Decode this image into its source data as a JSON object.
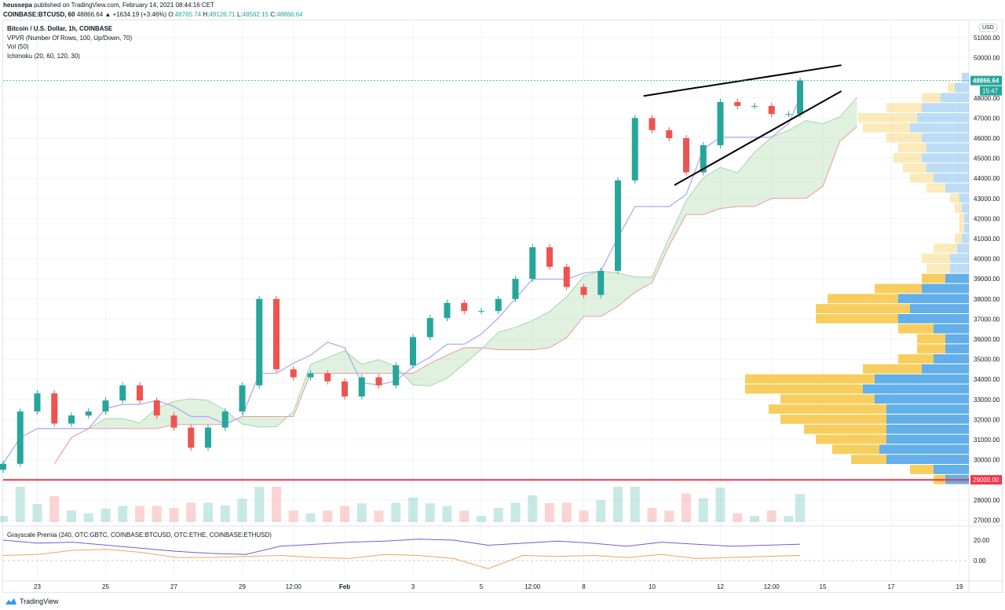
{
  "header": {
    "author": "heussepa",
    "published": "published on TradingView.com, February 14, 2021 08:44:16 CET",
    "symbol": "COINBASE:BTCUSD, 60",
    "last": "48866.64",
    "change": "▲ +1634.19 (+3.46%)",
    "o_label": "O:",
    "o": "48765.74",
    "h_label": "H:",
    "h": "49126.71",
    "l_label": "L:",
    "l": "48562.15",
    "c_label": "C:",
    "c": "48866.64"
  },
  "legend": [
    "Bitcoin / U.S. Dollar, 1h, COINBASE",
    "VPVR (Number Of Rows, 100, Up/Down, 70)",
    "Vol (50)",
    "Ichimoku (20, 60, 120, 30)"
  ],
  "indicator_title": "Grayscale Premia (240, OTC:GBTC, COINBASE:BTCUSD, OTC:ETHE, COINBASE:ETHUSD)",
  "brand": "TradingView",
  "currency": "USD",
  "colors": {
    "up": "#26a69a",
    "down": "#ef5350",
    "vp_up": "#5aabe8",
    "vp_down": "#f7cb55",
    "conversion": "#b2aaf0",
    "cloud_up": "#a5d6a7",
    "cloud_down": "#ef9a9a",
    "gbtc": "#6a5fd6",
    "ethe": "#f0a35e",
    "hline": "#f23645"
  },
  "chart_data": {
    "type": "candlestick",
    "interval": "12h points (approximated)",
    "start": "2021-01-22T00:00",
    "closes": [
      29800,
      32400,
      33300,
      31800,
      32200,
      32400,
      32950,
      33700,
      32950,
      32200,
      31600,
      30600,
      31600,
      32400,
      33700,
      38000,
      34500,
      34100,
      34300,
      33900,
      33150,
      34100,
      33700,
      34700,
      36100,
      37050,
      37800,
      37400,
      37400,
      38000,
      39000,
      40570,
      39600,
      38600,
      38200,
      39400,
      43900,
      47000,
      46400,
      46000,
      44300,
      45650,
      47800,
      47600,
      47600,
      47200,
      47200,
      48866.64
    ],
    "last_time": "2021-02-14T08:00",
    "ylim": [
      26600,
      51600
    ],
    "price_ticks": [
      51000,
      50000,
      48000,
      47000,
      46000,
      45000,
      44000,
      43000,
      42000,
      41000,
      40000,
      39000,
      38000,
      37000,
      36000,
      35000,
      34000,
      33000,
      32000,
      31000,
      30000,
      28000,
      27000
    ],
    "time_ticks": [
      {
        "t": "2021-01-23T00:00",
        "label": "23"
      },
      {
        "t": "2021-01-25T00:00",
        "label": "25"
      },
      {
        "t": "2021-01-27T00:00",
        "label": "27"
      },
      {
        "t": "2021-01-29T00:00",
        "label": "29"
      },
      {
        "t": "2021-01-30T12:00",
        "label": "12:00"
      },
      {
        "t": "2021-02-01T00:00",
        "label": "Feb"
      },
      {
        "t": "2021-02-03T00:00",
        "label": "3"
      },
      {
        "t": "2021-02-05T00:00",
        "label": "5"
      },
      {
        "t": "2021-02-06T12:00",
        "label": "12:00"
      },
      {
        "t": "2021-02-08T00:00",
        "label": "8"
      },
      {
        "t": "2021-02-10T00:00",
        "label": "10"
      },
      {
        "t": "2021-02-12T00:00",
        "label": "12"
      },
      {
        "t": "2021-02-13T12:00",
        "label": "12:00"
      },
      {
        "t": "2021-02-15T00:00",
        "label": "15"
      },
      {
        "t": "2021-02-17T00:00",
        "label": "17"
      },
      {
        "t": "2021-02-19T00:00",
        "label": "19"
      }
    ],
    "last_price_label": "48866.64",
    "countdown_label": "15:47",
    "horizontal_line": {
      "price": 29000,
      "label": "29000.00"
    },
    "trendlines": [
      [
        {
          "t": "2021-02-09T18:00",
          "p": 48100
        },
        {
          "t": "2021-02-15T13:00",
          "p": 49630
        }
      ],
      [
        {
          "t": "2021-02-10T15:40",
          "p": 43660
        },
        {
          "t": "2021-02-15T13:00",
          "p": 48340
        }
      ]
    ],
    "volume_profile": {
      "levels": [
        29000,
        29500,
        30000,
        30500,
        31000,
        31500,
        32000,
        32500,
        33000,
        33500,
        34000,
        34500,
        35000,
        35500,
        36000,
        36500,
        37000,
        37500,
        38000,
        38500,
        39000,
        39500,
        40000,
        40500,
        41000,
        41500,
        42000,
        42500,
        43000,
        43500,
        44000,
        44500,
        45000,
        45500,
        46000,
        46500,
        47000,
        47500,
        48000,
        48500,
        49000
      ],
      "up": [
        10,
        15,
        35,
        38,
        35,
        35,
        35,
        35,
        40,
        45,
        40,
        20,
        15,
        10,
        10,
        15,
        30,
        25,
        30,
        20,
        10,
        8,
        8,
        5,
        3,
        2,
        2,
        3,
        4,
        10,
        15,
        18,
        20,
        18,
        20,
        25,
        22,
        20,
        12,
        6,
        3
      ],
      "down": [
        5,
        10,
        15,
        20,
        30,
        35,
        45,
        50,
        40,
        50,
        55,
        25,
        15,
        12,
        12,
        15,
        35,
        40,
        30,
        20,
        10,
        10,
        12,
        10,
        3,
        2,
        2,
        3,
        4,
        8,
        10,
        10,
        12,
        12,
        15,
        20,
        25,
        15,
        8,
        3,
        0
      ],
      "value_area": [
        29000,
        39000
      ]
    },
    "premia": {
      "ylim": [
        -10,
        25
      ],
      "ticks": [
        20,
        0
      ],
      "gbtc": [
        20,
        17,
        18,
        15,
        12,
        9,
        7,
        6,
        14,
        16,
        18,
        19,
        21,
        20,
        15,
        17,
        19,
        17,
        14,
        18,
        16,
        14,
        15,
        16
      ],
      "ethe": [
        5,
        6,
        10,
        11,
        8,
        3,
        3,
        4,
        5,
        3,
        2,
        6,
        5,
        2,
        -8,
        5,
        4,
        5,
        3,
        6,
        2,
        3,
        4,
        5
      ]
    }
  }
}
